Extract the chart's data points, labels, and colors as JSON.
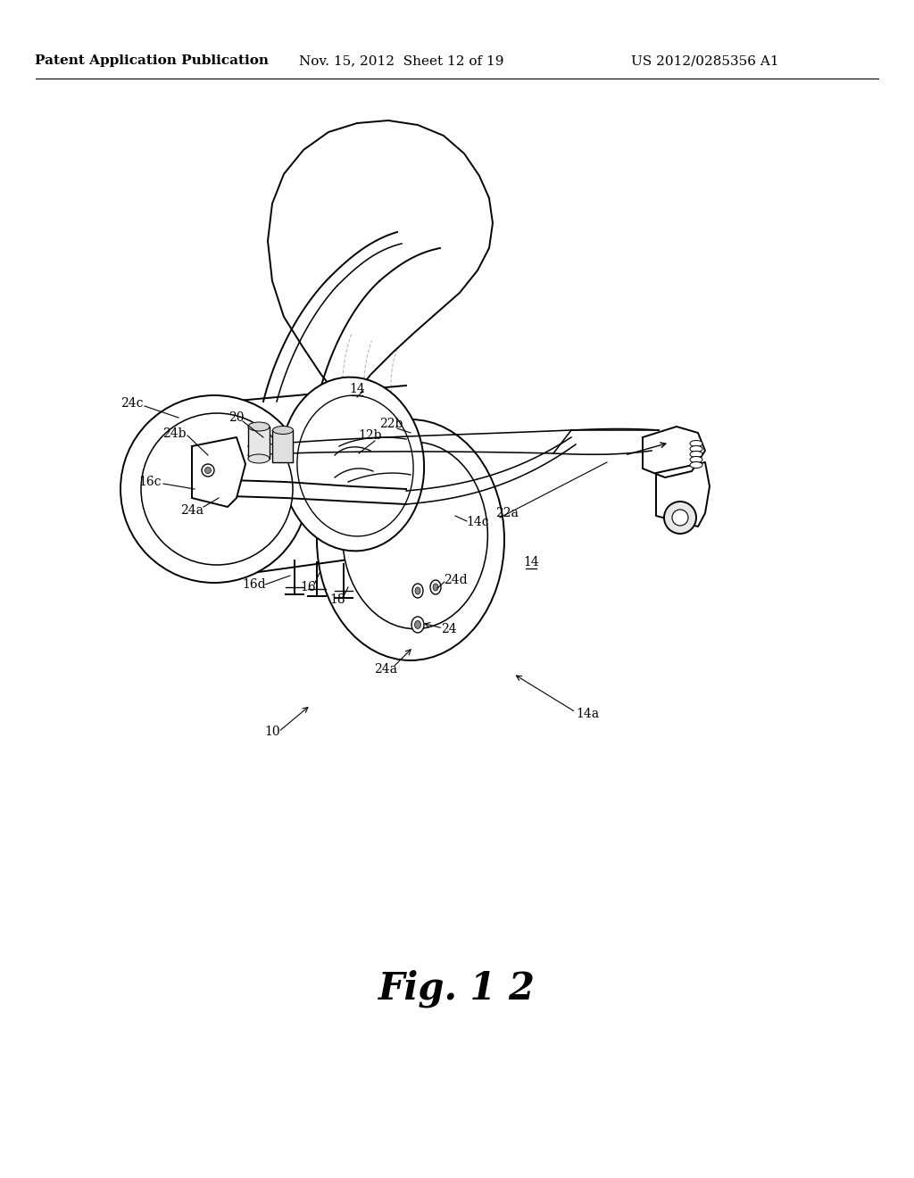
{
  "title": "FIG. 12",
  "header_left": "Patent Application Publication",
  "header_center": "Nov. 15, 2012  Sheet 12 of 19",
  "header_right": "US 2012/0285356 A1",
  "bg_color": "#ffffff",
  "line_color": "#000000",
  "fig_caption": "Fig. 1 2"
}
